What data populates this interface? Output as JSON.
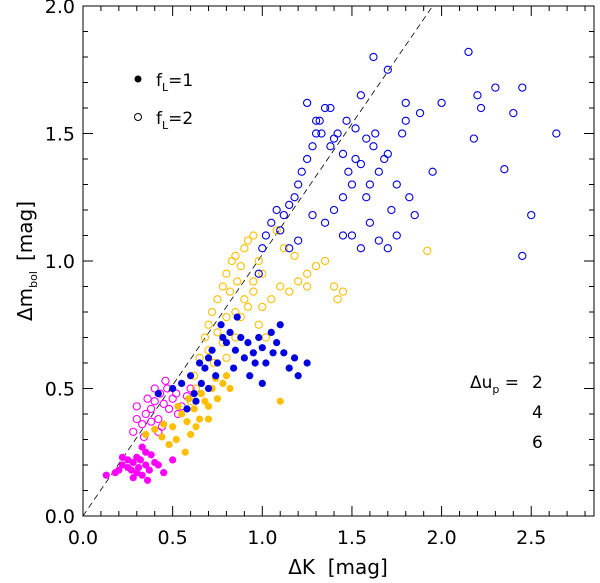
{
  "chart_data": {
    "type": "scatter",
    "title": "",
    "xlabel": "ΔK  [mag]",
    "ylabel": "Δm_bol  [mag]",
    "ylabel_main": "Δm",
    "ylabel_sub": "bol",
    "ylabel_unit": "[mag]",
    "xlim": [
      0.0,
      2.85
    ],
    "ylim": [
      0.0,
      2.0
    ],
    "xticks": [
      "0.0",
      "0.5",
      "1.0",
      "1.5",
      "2.0",
      "2.5"
    ],
    "yticks": [
      "0.0",
      "0.5",
      "1.0",
      "1.5",
      "2.0"
    ],
    "reference_line": {
      "style": "dashed",
      "from": [
        0.0,
        0.0
      ],
      "to": [
        1.95,
        2.0
      ]
    },
    "marker_legend": [
      {
        "prefix": "f",
        "sub": "L",
        "suffix": "=1",
        "marker": "filled"
      },
      {
        "prefix": "f",
        "sub": "L",
        "suffix": "=2",
        "marker": "open"
      }
    ],
    "color_legend": {
      "title_prefix": "Δu",
      "title_sub": "p",
      "title_suffix": " =",
      "entries": [
        {
          "label": "2",
          "color": "#ff00ff"
        },
        {
          "label": "4",
          "color": "#ffbf00"
        },
        {
          "label": "6",
          "color": "#0000e0"
        }
      ]
    },
    "series": [
      {
        "name": "Δu_p=2, f_L=1",
        "color": "#ff00ff",
        "marker": "filled",
        "points": [
          [
            0.13,
            0.16
          ],
          [
            0.18,
            0.17
          ],
          [
            0.2,
            0.18
          ],
          [
            0.22,
            0.2
          ],
          [
            0.25,
            0.19
          ],
          [
            0.28,
            0.21
          ],
          [
            0.3,
            0.17
          ],
          [
            0.32,
            0.22
          ],
          [
            0.35,
            0.2
          ],
          [
            0.37,
            0.18
          ],
          [
            0.4,
            0.21
          ],
          [
            0.25,
            0.22
          ],
          [
            0.3,
            0.23
          ],
          [
            0.33,
            0.16
          ],
          [
            0.38,
            0.24
          ],
          [
            0.42,
            0.2
          ],
          [
            0.27,
            0.18
          ],
          [
            0.35,
            0.25
          ],
          [
            0.45,
            0.17
          ],
          [
            0.22,
            0.23
          ],
          [
            0.28,
            0.15
          ],
          [
            0.36,
            0.14
          ],
          [
            0.5,
            0.22
          ],
          [
            0.31,
            0.19
          ],
          [
            0.33,
            0.27
          ]
        ]
      },
      {
        "name": "Δu_p=2, f_L=2",
        "color": "#ff00ff",
        "marker": "open",
        "points": [
          [
            0.28,
            0.33
          ],
          [
            0.3,
            0.38
          ],
          [
            0.33,
            0.36
          ],
          [
            0.35,
            0.4
          ],
          [
            0.38,
            0.42
          ],
          [
            0.4,
            0.45
          ],
          [
            0.42,
            0.38
          ],
          [
            0.43,
            0.48
          ],
          [
            0.45,
            0.44
          ],
          [
            0.47,
            0.5
          ],
          [
            0.48,
            0.42
          ],
          [
            0.5,
            0.46
          ],
          [
            0.52,
            0.48
          ],
          [
            0.55,
            0.43
          ],
          [
            0.58,
            0.47
          ],
          [
            0.36,
            0.46
          ],
          [
            0.44,
            0.35
          ],
          [
            0.4,
            0.5
          ],
          [
            0.3,
            0.43
          ],
          [
            0.53,
            0.4
          ],
          [
            0.46,
            0.53
          ],
          [
            0.38,
            0.37
          ],
          [
            0.42,
            0.33
          ],
          [
            0.6,
            0.5
          ],
          [
            0.34,
            0.31
          ]
        ]
      },
      {
        "name": "Δu_p=4, f_L=1",
        "color": "#ffbf00",
        "marker": "filled",
        "points": [
          [
            0.35,
            0.32
          ],
          [
            0.4,
            0.34
          ],
          [
            0.45,
            0.36
          ],
          [
            0.5,
            0.35
          ],
          [
            0.52,
            0.3
          ],
          [
            0.55,
            0.4
          ],
          [
            0.58,
            0.37
          ],
          [
            0.6,
            0.32
          ],
          [
            0.62,
            0.42
          ],
          [
            0.65,
            0.38
          ],
          [
            0.68,
            0.45
          ],
          [
            0.7,
            0.43
          ],
          [
            0.72,
            0.5
          ],
          [
            0.75,
            0.46
          ],
          [
            0.78,
            0.52
          ],
          [
            0.8,
            0.55
          ],
          [
            0.48,
            0.28
          ],
          [
            0.57,
            0.25
          ],
          [
            0.66,
            0.48
          ],
          [
            0.74,
            0.54
          ],
          [
            0.82,
            0.5
          ],
          [
            0.63,
            0.35
          ],
          [
            0.53,
            0.43
          ],
          [
            0.7,
            0.38
          ],
          [
            1.1,
            0.45
          ],
          [
            0.59,
            0.46
          ],
          [
            0.44,
            0.31
          ]
        ]
      },
      {
        "name": "Δu_p=4, f_L=2",
        "color": "#ffbf00",
        "marker": "open",
        "points": [
          [
            0.62,
            0.55
          ],
          [
            0.65,
            0.62
          ],
          [
            0.68,
            0.7
          ],
          [
            0.7,
            0.75
          ],
          [
            0.72,
            0.8
          ],
          [
            0.75,
            0.85
          ],
          [
            0.78,
            0.9
          ],
          [
            0.8,
            0.95
          ],
          [
            0.83,
            1.0
          ],
          [
            0.85,
            1.02
          ],
          [
            0.88,
            0.98
          ],
          [
            0.9,
            1.05
          ],
          [
            0.92,
            1.08
          ],
          [
            0.95,
            1.1
          ],
          [
            0.98,
            1.0
          ],
          [
            1.0,
            0.95
          ],
          [
            1.05,
            0.85
          ],
          [
            1.1,
            0.9
          ],
          [
            1.15,
            0.88
          ],
          [
            1.2,
            0.92
          ],
          [
            1.25,
            0.95
          ],
          [
            1.3,
            0.98
          ],
          [
            1.35,
            1.0
          ],
          [
            1.4,
            0.9
          ],
          [
            1.42,
            0.85
          ],
          [
            1.45,
            0.88
          ],
          [
            0.75,
            0.72
          ],
          [
            0.8,
            0.78
          ],
          [
            0.85,
            0.8
          ],
          [
            0.9,
            0.85
          ],
          [
            0.95,
            0.88
          ],
          [
            1.0,
            0.82
          ],
          [
            0.7,
            0.65
          ],
          [
            0.82,
            0.88
          ],
          [
            0.86,
            0.92
          ],
          [
            0.78,
            0.68
          ],
          [
            0.88,
            0.78
          ],
          [
            0.92,
            0.82
          ],
          [
            0.98,
            0.75
          ],
          [
            1.02,
            0.7
          ],
          [
            0.73,
            0.6
          ],
          [
            1.08,
            1.12
          ],
          [
            1.12,
            1.05
          ],
          [
            0.95,
            0.92
          ],
          [
            0.85,
            0.7
          ],
          [
            0.8,
            0.62
          ],
          [
            1.92,
            1.04
          ],
          [
            1.18,
            1.02
          ],
          [
            1.25,
            0.9
          ],
          [
            0.6,
            0.45
          ],
          [
            0.63,
            0.5
          ]
        ]
      },
      {
        "name": "Δu_p=6, f_L=1",
        "color": "#0000e0",
        "marker": "filled",
        "points": [
          [
            0.42,
            0.48
          ],
          [
            0.5,
            0.5
          ],
          [
            0.55,
            0.52
          ],
          [
            0.6,
            0.55
          ],
          [
            0.62,
            0.48
          ],
          [
            0.65,
            0.6
          ],
          [
            0.68,
            0.58
          ],
          [
            0.7,
            0.62
          ],
          [
            0.72,
            0.65
          ],
          [
            0.75,
            0.6
          ],
          [
            0.78,
            0.7
          ],
          [
            0.8,
            0.68
          ],
          [
            0.82,
            0.72
          ],
          [
            0.85,
            0.65
          ],
          [
            0.88,
            0.7
          ],
          [
            0.9,
            0.62
          ],
          [
            0.92,
            0.68
          ],
          [
            0.95,
            0.64
          ],
          [
            0.98,
            0.7
          ],
          [
            1.0,
            0.66
          ],
          [
            1.02,
            0.6
          ],
          [
            1.05,
            0.72
          ],
          [
            1.08,
            0.68
          ],
          [
            1.1,
            0.75
          ],
          [
            1.12,
            0.64
          ],
          [
            1.15,
            0.58
          ],
          [
            1.18,
            0.62
          ],
          [
            1.2,
            0.55
          ],
          [
            1.25,
            0.6
          ],
          [
            0.58,
            0.42
          ],
          [
            0.66,
            0.52
          ],
          [
            0.74,
            0.55
          ],
          [
            0.84,
            0.58
          ],
          [
            0.93,
            0.55
          ],
          [
            1.0,
            0.52
          ],
          [
            0.77,
            0.75
          ],
          [
            0.86,
            0.78
          ],
          [
            0.96,
            0.6
          ],
          [
            1.06,
            0.64
          ],
          [
            0.63,
            0.45
          ],
          [
            0.7,
            0.5
          ]
        ]
      },
      {
        "name": "Δu_p=6, f_L=2",
        "color": "#0000e0",
        "marker": "open",
        "points": [
          [
            0.98,
            0.95
          ],
          [
            1.0,
            1.05
          ],
          [
            1.02,
            1.1
          ],
          [
            1.05,
            1.15
          ],
          [
            1.08,
            1.2
          ],
          [
            1.1,
            1.12
          ],
          [
            1.12,
            1.18
          ],
          [
            1.15,
            1.22
          ],
          [
            1.18,
            1.25
          ],
          [
            1.2,
            1.3
          ],
          [
            1.22,
            1.35
          ],
          [
            1.25,
            1.4
          ],
          [
            1.28,
            1.45
          ],
          [
            1.3,
            1.5
          ],
          [
            1.32,
            1.55
          ],
          [
            1.35,
            1.6
          ],
          [
            1.38,
            1.45
          ],
          [
            1.4,
            1.48
          ],
          [
            1.42,
            1.5
          ],
          [
            1.45,
            1.42
          ],
          [
            1.48,
            1.35
          ],
          [
            1.5,
            1.3
          ],
          [
            1.52,
            1.4
          ],
          [
            1.55,
            1.38
          ],
          [
            1.58,
            1.25
          ],
          [
            1.6,
            1.3
          ],
          [
            1.62,
            1.45
          ],
          [
            1.65,
            1.35
          ],
          [
            1.68,
            1.4
          ],
          [
            1.7,
            1.42
          ],
          [
            1.72,
            1.2
          ],
          [
            1.75,
            1.3
          ],
          [
            1.78,
            1.5
          ],
          [
            1.8,
            1.55
          ],
          [
            1.82,
            1.25
          ],
          [
            1.85,
            1.18
          ],
          [
            1.88,
            1.58
          ],
          [
            1.95,
            1.35
          ],
          [
            2.0,
            1.62
          ],
          [
            2.15,
            1.82
          ],
          [
            2.18,
            1.48
          ],
          [
            2.2,
            1.65
          ],
          [
            2.22,
            1.6
          ],
          [
            2.3,
            1.68
          ],
          [
            2.35,
            1.36
          ],
          [
            2.4,
            1.58
          ],
          [
            2.45,
            1.68
          ],
          [
            2.5,
            1.18
          ],
          [
            2.64,
            1.5
          ],
          [
            2.45,
            1.02
          ],
          [
            1.62,
            1.8
          ],
          [
            1.7,
            1.75
          ],
          [
            1.55,
            1.65
          ],
          [
            1.3,
            1.55
          ],
          [
            1.25,
            1.62
          ],
          [
            1.35,
            1.15
          ],
          [
            1.4,
            1.2
          ],
          [
            1.45,
            1.25
          ],
          [
            1.5,
            1.1
          ],
          [
            1.6,
            1.15
          ],
          [
            1.65,
            1.08
          ],
          [
            1.7,
            1.05
          ],
          [
            1.55,
            1.05
          ],
          [
            1.45,
            1.1
          ],
          [
            1.15,
            1.05
          ],
          [
            1.2,
            1.08
          ],
          [
            1.28,
            1.18
          ],
          [
            1.33,
            1.5
          ],
          [
            1.38,
            1.6
          ],
          [
            1.47,
            1.55
          ],
          [
            1.52,
            1.52
          ],
          [
            1.58,
            1.48
          ],
          [
            1.63,
            1.5
          ],
          [
            1.75,
            1.1
          ],
          [
            1.8,
            1.62
          ]
        ]
      }
    ]
  }
}
